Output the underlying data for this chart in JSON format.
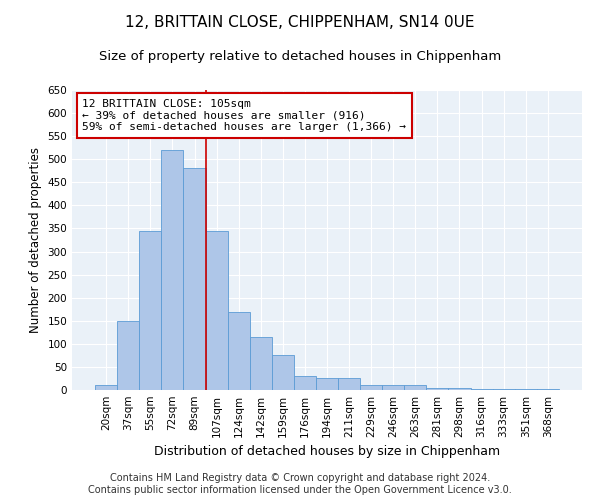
{
  "title": "12, BRITTAIN CLOSE, CHIPPENHAM, SN14 0UE",
  "subtitle": "Size of property relative to detached houses in Chippenham",
  "xlabel": "Distribution of detached houses by size in Chippenham",
  "ylabel": "Number of detached properties",
  "categories": [
    "20sqm",
    "37sqm",
    "55sqm",
    "72sqm",
    "89sqm",
    "107sqm",
    "124sqm",
    "142sqm",
    "159sqm",
    "176sqm",
    "194sqm",
    "211sqm",
    "229sqm",
    "246sqm",
    "263sqm",
    "281sqm",
    "298sqm",
    "316sqm",
    "333sqm",
    "351sqm",
    "368sqm"
  ],
  "values": [
    10,
    150,
    345,
    520,
    480,
    345,
    170,
    115,
    75,
    30,
    25,
    25,
    10,
    10,
    10,
    5,
    5,
    2,
    2,
    2,
    2
  ],
  "bar_color": "#aec6e8",
  "bar_edge_color": "#5b9bd5",
  "vline_color": "#cc0000",
  "annotation_text": "12 BRITTAIN CLOSE: 105sqm\n← 39% of detached houses are smaller (916)\n59% of semi-detached houses are larger (1,366) →",
  "annotation_box_color": "#ffffff",
  "annotation_box_edge_color": "#cc0000",
  "footer_line1": "Contains HM Land Registry data © Crown copyright and database right 2024.",
  "footer_line2": "Contains public sector information licensed under the Open Government Licence v3.0.",
  "ylim": [
    0,
    650
  ],
  "yticks": [
    0,
    50,
    100,
    150,
    200,
    250,
    300,
    350,
    400,
    450,
    500,
    550,
    600,
    650
  ],
  "background_color": "#eaf1f8",
  "grid_color": "#ffffff",
  "title_fontsize": 11,
  "subtitle_fontsize": 9.5,
  "ylabel_fontsize": 8.5,
  "xlabel_fontsize": 9,
  "tick_fontsize": 7.5,
  "footer_fontsize": 7,
  "vline_x": 4.5
}
